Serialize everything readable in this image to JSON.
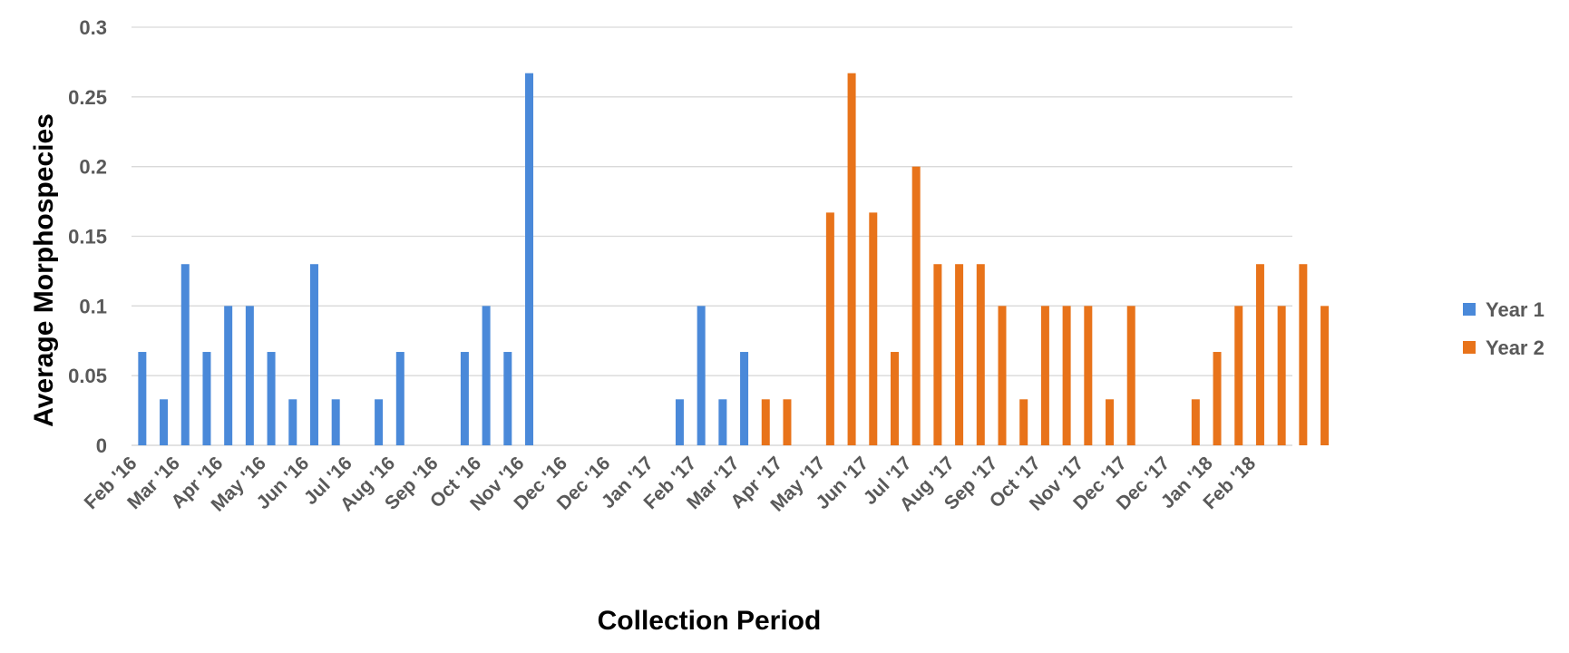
{
  "chart_data": {
    "type": "bar",
    "xlabel": "Collection Period",
    "ylabel": "Average Morphospecies",
    "ylim": [
      0,
      0.3
    ],
    "yticks": [
      "0",
      "0.05",
      "0.1",
      "0.15",
      "0.2",
      "0.25",
      "0.3"
    ],
    "grid": true,
    "legend_position": "right",
    "tick_labels": [
      "Feb '16",
      "Mar '16",
      "Apr '16",
      "May '16",
      "Jun '16",
      "Jul '16",
      "Aug '16",
      "Sep '16",
      "Oct '16",
      "Nov '16",
      "Dec '16",
      "Dec '16",
      "Jan '17",
      "Feb '17",
      "Mar '17",
      "Apr '17",
      "May '17",
      "Jun '17",
      "Jul '17",
      "Aug '17",
      "Sep '17",
      "Oct '17",
      "Nov '17",
      "Dec '17",
      "Dec '17",
      "Jan '18",
      "Feb '18"
    ],
    "series": [
      {
        "name": "Year 1",
        "color": "#4a89d9",
        "values": [
          0.067,
          0.033,
          0.13,
          0.067,
          0.1,
          0.1,
          0.067,
          0.033,
          0.13,
          0.033,
          0,
          0.033,
          0.067,
          0,
          0,
          0.067,
          0.1,
          0.067,
          0.267,
          0,
          0,
          0,
          0,
          0,
          0,
          0.033,
          0.1,
          0.033,
          0.067,
          0,
          0,
          0,
          0,
          0,
          0,
          0,
          0,
          0,
          0,
          0,
          0,
          0,
          0,
          0,
          0,
          0,
          0,
          0,
          0,
          0,
          0,
          0,
          0,
          0
        ]
      },
      {
        "name": "Year 2",
        "color": "#e8731a",
        "values": [
          0,
          0,
          0,
          0,
          0,
          0,
          0,
          0,
          0,
          0,
          0,
          0,
          0,
          0,
          0,
          0,
          0,
          0,
          0,
          0,
          0,
          0,
          0,
          0,
          0,
          0,
          0,
          0,
          0,
          0.033,
          0.033,
          0,
          0.167,
          0.267,
          0.167,
          0.067,
          0.2,
          0.13,
          0.13,
          0.13,
          0.1,
          0.033,
          0.1,
          0.1,
          0.1,
          0.033,
          0.1,
          0,
          0,
          0.033,
          0.067,
          0.1,
          0.13,
          0.1,
          0.13,
          0.1
        ]
      }
    ]
  }
}
